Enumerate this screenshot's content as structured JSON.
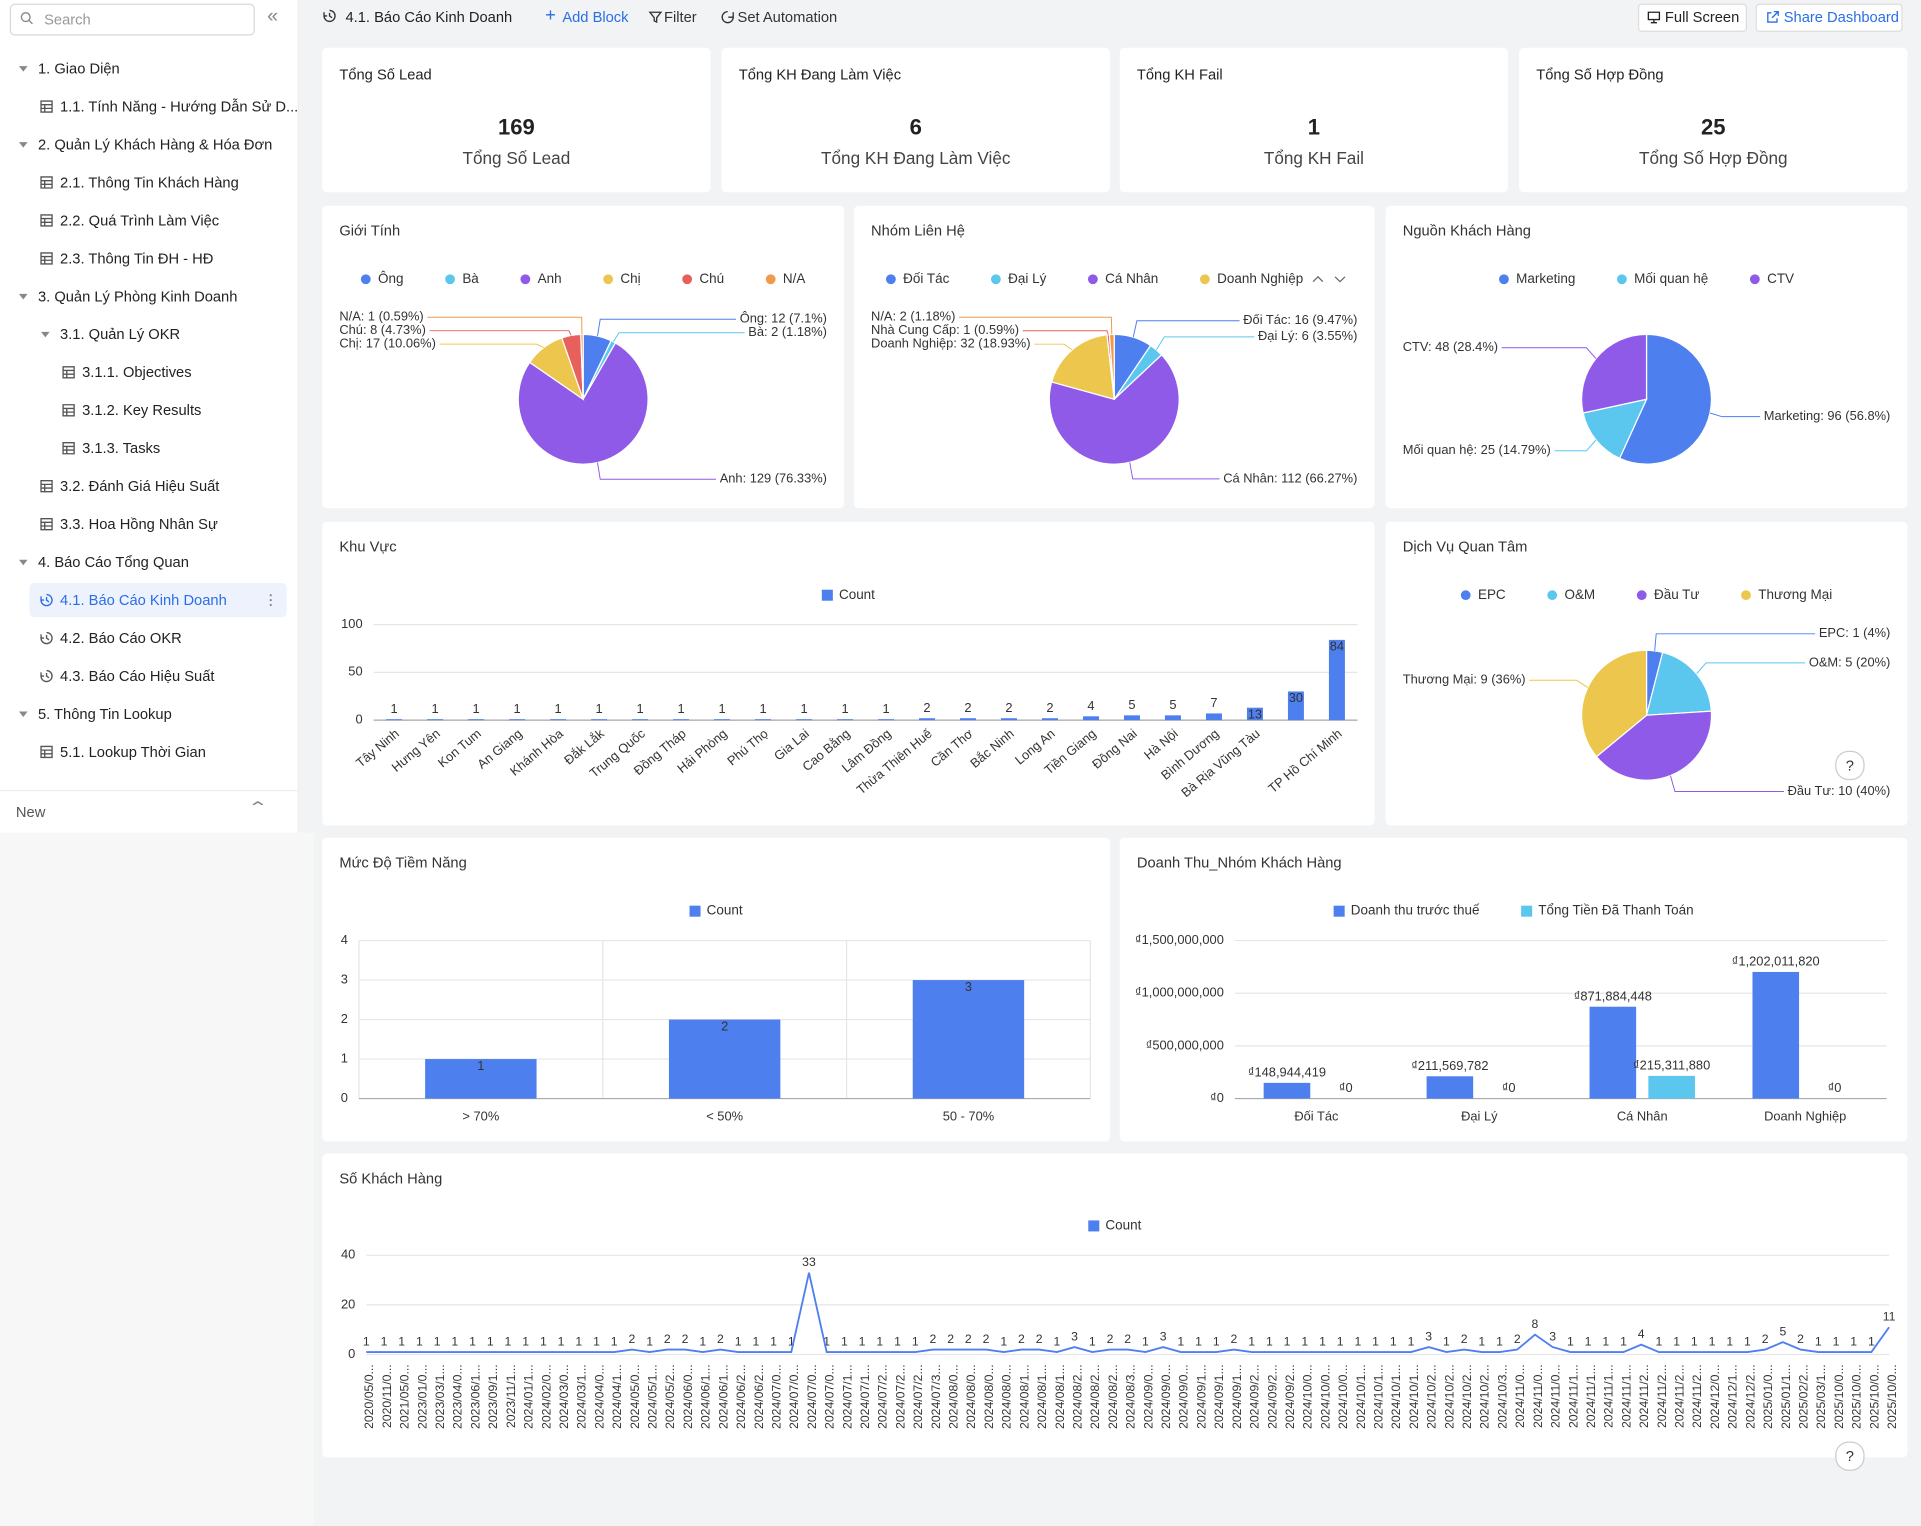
{
  "toolbar": {
    "title": "4.1. Báo Cáo Kinh Doanh",
    "add_block": "Add Block",
    "filter": "Filter",
    "automation": "Set Automation",
    "full_screen": "Full Screen",
    "share": "Share Dashboard"
  },
  "sidebar": {
    "search": "Search",
    "items": [
      "1. Giao Diện",
      "1.1. Tính Năng - Hướng Dẫn Sử D...",
      "2. Quản Lý Khách Hàng & Hóa Đơn",
      "2.1. Thông Tin Khách Hàng",
      "2.2. Quá Trình Làm Việc",
      "2.3. Thông Tin ĐH - HĐ",
      "3. Quản Lý Phòng Kinh Doanh",
      "3.1. Quản Lý OKR",
      "3.1.1. Objectives",
      "3.1.2. Key Results",
      "3.1.3. Tasks",
      "3.2. Đánh Giá Hiệu Suất",
      "3.3. Hoa Hồng Nhân Sự",
      "4. Báo Cáo Tổng Quan",
      "4.1. Báo Cáo Kinh Doanh",
      "4.2. Báo Cáo OKR",
      "4.3. Báo Cáo Hiệu Suất",
      "5. Thông Tin Lookup",
      "5.1. Lookup Thời Gian"
    ],
    "footer": "New"
  },
  "kpis": [
    {
      "title": "Tổng Số Lead",
      "value": 169,
      "label": "Tổng Số Lead"
    },
    {
      "title": "Tổng KH Đang Làm Việc",
      "value": 6,
      "label": "Tổng KH Đang Làm Việc"
    },
    {
      "title": "Tổng KH Fail",
      "value": 1,
      "label": "Tổng KH Fail"
    },
    {
      "title": "Tổng Số Hợp Đồng",
      "value": 25,
      "label": "Tổng Số Hợp Đồng"
    }
  ],
  "chart_data": [
    {
      "type": "pie",
      "title": "Giới Tính",
      "categories": [
        "Ông",
        "Bà",
        "Anh",
        "Chị",
        "Chú",
        "N/A"
      ],
      "values": [
        12,
        2,
        129,
        17,
        8,
        1
      ],
      "value_labels": [
        "Ông: 12 (7.1%)",
        "Bà: 2 (1.18%)",
        "Anh: 129 (76.33%)",
        "Chị: 17 (10.06%)",
        "Chú: 8 (4.73%)",
        "N/A: 1 (0.59%)"
      ],
      "colors": [
        "#4e7fef",
        "#5bc7ef",
        "#8f5ae8",
        "#edc64e",
        "#e8605c",
        "#f2984a"
      ]
    },
    {
      "type": "pie",
      "title": "Nhóm Liên Hệ",
      "categories": [
        "Đối Tác",
        "Đại Lý",
        "Cá Nhân",
        "Doanh Nghiệp",
        "Nhà Cung Cấp",
        "N/A"
      ],
      "values": [
        16,
        6,
        112,
        32,
        1,
        2
      ],
      "value_labels": [
        "Đối Tác: 16 (9.47%)",
        "Đại Lý: 6 (3.55%)",
        "Cá Nhân: 112 (66.27%)",
        "Doanh Nghiệp: 32 (18.93%)",
        "Nhà Cung Cấp: 1 (0.59%)",
        "N/A: 2 (1.18%)"
      ],
      "colors": [
        "#4e7fef",
        "#5bc7ef",
        "#8f5ae8",
        "#edc64e",
        "#e8605c",
        "#f2984a"
      ]
    },
    {
      "type": "pie",
      "title": "Nguồn Khách Hàng",
      "categories": [
        "Marketing",
        "Mối quan hệ",
        "CTV"
      ],
      "values": [
        96,
        25,
        48
      ],
      "value_labels": [
        "Marketing: 96 (56.8%)",
        "Mối quan hệ: 25 (14.79%)",
        "CTV: 48 (28.4%)"
      ],
      "colors": [
        "#4e7fef",
        "#5bc7ef",
        "#8f5ae8"
      ]
    },
    {
      "type": "bar",
      "title": "Khu Vực",
      "categories": [
        "Tây Ninh",
        "Hưng Yên",
        "Kon Tum",
        "An Giang",
        "Khánh Hòa",
        "Đắk Lắk",
        "Trung Quốc",
        "Đồng Tháp",
        "Hải Phòng",
        "Phú Thọ",
        "Gia Lai",
        "Cao Bằng",
        "Lâm Đồng",
        "Thừa Thiên Huế",
        "Cần Thơ",
        "Bắc Ninh",
        "Long An",
        "Tiền Giang",
        "Đồng Nai",
        "Hà Nội",
        "Bình Dương",
        "Bà Rịa Vũng Tàu",
        null,
        "TP Hồ Chí Minh"
      ],
      "series": [
        {
          "name": "Count",
          "color": "#4e7fef",
          "values": [
            1,
            1,
            1,
            1,
            1,
            1,
            1,
            1,
            1,
            1,
            1,
            1,
            1,
            2,
            2,
            2,
            2,
            4,
            5,
            5,
            7,
            13,
            30,
            84
          ]
        }
      ],
      "ylim": [
        0,
        100
      ],
      "yticks": [
        0,
        50,
        100
      ],
      "grid": true
    },
    {
      "type": "pie",
      "title": "Dịch Vụ Quan Tâm",
      "categories": [
        "EPC",
        "O&M",
        "Đầu Tư",
        "Thương Mại"
      ],
      "values": [
        1,
        5,
        10,
        9
      ],
      "value_labels": [
        "EPC: 1 (4%)",
        "O&M: 5 (20%)",
        "Đầu Tư: 10 (40%)",
        "Thương Mại: 9 (36%)"
      ],
      "colors": [
        "#4e7fef",
        "#5bc7ef",
        "#8f5ae8",
        "#edc64e"
      ]
    },
    {
      "type": "bar",
      "title": "Mức Độ Tiềm Năng",
      "categories": [
        "> 70%",
        "< 50%",
        "50 - 70%"
      ],
      "series": [
        {
          "name": "Count",
          "color": "#4e7fef",
          "values": [
            1,
            2,
            3
          ]
        }
      ],
      "ylim": [
        0,
        4
      ],
      "yticks": [
        0,
        1,
        2,
        3,
        4
      ],
      "grid": true,
      "xgrid": true
    },
    {
      "type": "bar",
      "title": "Doanh Thu_Nhóm Khách Hàng",
      "categories": [
        "Đối Tác",
        "Đại Lý",
        "Cá Nhân",
        "Doanh Nghiệp"
      ],
      "series": [
        {
          "name": "Doanh thu trước thuế",
          "color": "#4e7fef",
          "values": [
            148944419,
            211569782,
            871884448,
            1202011820
          ],
          "value_labels": [
            "₫148,944,419",
            "₫211,569,782",
            "₫871,884,448",
            "₫1,202,011,820"
          ]
        },
        {
          "name": "Tổng Tiền Đã Thanh Toán",
          "color": "#5bc7ef",
          "values": [
            0,
            0,
            215311880,
            0
          ],
          "value_labels": [
            "₫0",
            "₫0",
            "₫215,311,880",
            "₫0"
          ]
        }
      ],
      "ylim": [
        0,
        1500000000
      ],
      "yticks": [
        {
          "value": 0,
          "label": "₫0"
        },
        {
          "value": 500000000,
          "label": "₫500,000,000"
        },
        {
          "value": 1000000000,
          "label": "₫1,000,000,000"
        },
        {
          "value": 1500000000,
          "label": "₫1,500,000,000"
        }
      ],
      "grid": true
    },
    {
      "type": "line",
      "title": "Số Khách Hàng",
      "categories": [
        "2020/05/0...",
        "2020/11/0...",
        "2021/05/0...",
        "2023/01/0...",
        "2023/03/1...",
        "2023/04/0...",
        "2023/06/1...",
        "2023/09/1...",
        "2023/11/1...",
        "2024/01/1...",
        "2024/02/0...",
        "2024/03/0...",
        "2024/03/1...",
        "2024/04/0...",
        "2024/04/1...",
        "2024/05/0...",
        "2024/05/1...",
        "2024/05/2...",
        "2024/06/0...",
        "2024/06/1...",
        "2024/06/1...",
        "2024/06/2...",
        "2024/06/2...",
        "2024/07/0...",
        "2024/07/0...",
        "2024/07/0...",
        "2024/07/0...",
        "2024/07/1...",
        "2024/07/1...",
        "2024/07/2...",
        "2024/07/2...",
        "2024/07/2...",
        "2024/07/3...",
        "2024/08/0...",
        "2024/08/0...",
        "2024/08/0...",
        "2024/08/0...",
        "2024/08/1...",
        "2024/08/1...",
        "2024/08/1...",
        "2024/08/2...",
        "2024/08/2...",
        "2024/08/2...",
        "2024/08/3...",
        "2024/09/0...",
        "2024/09/0...",
        "2024/09/0...",
        "2024/09/1...",
        "2024/09/1...",
        "2024/09/1...",
        "2024/09/2...",
        "2024/09/2...",
        "2024/09/2...",
        "2024/10/0...",
        "2024/10/0...",
        "2024/10/0...",
        "2024/10/1...",
        "2024/10/1...",
        "2024/10/1...",
        "2024/10/1...",
        "2024/10/2...",
        "2024/10/2...",
        "2024/10/2...",
        "2024/10/2...",
        "2024/10/3...",
        "2024/11/0...",
        "2024/11/0...",
        "2024/11/0...",
        "2024/11/1...",
        "2024/11/1...",
        "2024/11/1...",
        "2024/11/1...",
        "2024/11/2...",
        "2024/11/2...",
        "2024/11/2...",
        "2024/11/2...",
        "2024/12/0...",
        "2024/12/1...",
        "2024/12/2...",
        "2025/01/0...",
        "2025/01/1...",
        "2025/02/2...",
        "2025/03/1...",
        "2025/10/0...",
        "2025/10/0...",
        "2025/10/0...",
        "2025/10/0..."
      ],
      "series": [
        {
          "name": "Count",
          "color": "#4e7fef",
          "values": [
            1,
            1,
            1,
            1,
            1,
            1,
            1,
            1,
            1,
            1,
            1,
            1,
            1,
            1,
            1,
            2,
            1,
            2,
            2,
            1,
            2,
            1,
            1,
            1,
            1,
            33,
            1,
            1,
            1,
            1,
            1,
            1,
            2,
            2,
            2,
            2,
            1,
            2,
            2,
            1,
            3,
            1,
            2,
            2,
            1,
            3,
            1,
            1,
            1,
            2,
            1,
            1,
            1,
            1,
            1,
            1,
            1,
            1,
            1,
            1,
            3,
            1,
            2,
            1,
            1,
            2,
            8,
            3,
            1,
            1,
            1,
            1,
            4,
            1,
            1,
            1,
            1,
            1,
            1,
            2,
            5,
            2,
            1,
            1,
            1,
            1,
            11
          ]
        }
      ],
      "ylim": [
        0,
        40
      ],
      "yticks": [
        0,
        20,
        40
      ],
      "grid": true
    }
  ]
}
